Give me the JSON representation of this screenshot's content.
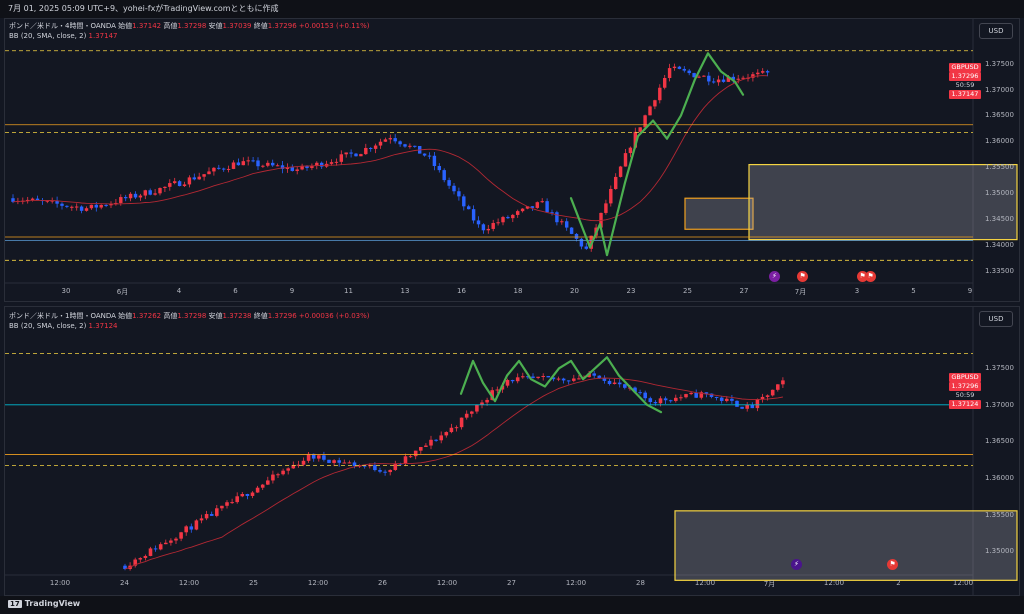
{
  "header": {
    "text": "7月 01, 2025 05:09 UTC+9、yohei-fxがTradingView.comとともに作成"
  },
  "footer": {
    "logo_mark": "17",
    "logo_text": "TradingView"
  },
  "colors": {
    "up": "#f23645",
    "down": "#2962ff",
    "ma": "#b22833",
    "band_orange": "#f0a020",
    "zone_yellow": "#f5d442",
    "wave_green": "#4caf50",
    "cyan": "#00bcd4"
  },
  "panes": [
    {
      "legend": {
        "symbol": "ポンド／米ドル・4時間・OANDA",
        "o_label": "始値",
        "o": "1.37142",
        "h_label": "高値",
        "h": "1.37298",
        "l_label": "安値",
        "l": "1.37039",
        "c_label": "終値",
        "c": "1.37296",
        "chg": "+0.00153 (+0.11%)",
        "bb_label": "BB (20, SMA, close, 2)",
        "bb_value": "1.37147"
      },
      "currency": "USD",
      "yticks": [
        "1.37500",
        "1.37000",
        "1.36500",
        "1.36000",
        "1.35500",
        "1.35000",
        "1.34500",
        "1.34000",
        "1.33500"
      ],
      "xticks": [
        "30",
        "6月",
        "4",
        "6",
        "9",
        "11",
        "13",
        "16",
        "18",
        "20",
        "23",
        "25",
        "27",
        "7月",
        "3",
        "5",
        "9"
      ],
      "tags": {
        "symbol": "GBPUSD",
        "price": "1.37296",
        "countdown": "50:59",
        "bb": "1.37147"
      },
      "chart_data": {
        "type": "candlestick",
        "ylim": [
          1.333,
          1.379
        ],
        "levels": [
          1.3775,
          1.3632,
          1.3617,
          1.3415,
          1.3408,
          1.337
        ],
        "zones": [
          [
            1.343,
            1.349
          ],
          [
            1.341,
            1.3555
          ]
        ]
      }
    },
    {
      "legend": {
        "symbol": "ポンド／米ドル・1時間・OANDA",
        "o_label": "始値",
        "o": "1.37262",
        "h_label": "高値",
        "h": "1.37298",
        "l_label": "安値",
        "l": "1.37238",
        "c_label": "終値",
        "c": "1.37296",
        "chg": "+0.00036 (+0.03%)",
        "bb_label": "BB (20, SMA, close, 2)",
        "bb_value": "1.37124"
      },
      "currency": "USD",
      "yticks": [
        "1.37500",
        "1.37000",
        "1.36500",
        "1.36000",
        "1.35500",
        "1.35000"
      ],
      "xticks": [
        "12:00",
        "24",
        "12:00",
        "25",
        "12:00",
        "26",
        "12:00",
        "27",
        "12:00",
        "28",
        "12:00",
        "7月",
        "12:00",
        "2",
        "12:00"
      ],
      "tags": {
        "symbol": "GBPUSD",
        "price": "1.37296",
        "countdown": "50:59",
        "bb": "1.37124"
      },
      "chart_data": {
        "type": "candlestick",
        "ylim": [
          1.347,
          1.379
        ],
        "levels": [
          1.377,
          1.37,
          1.3632,
          1.3617
        ],
        "zones": [
          [
            1.346,
            1.3555
          ]
        ]
      }
    }
  ]
}
